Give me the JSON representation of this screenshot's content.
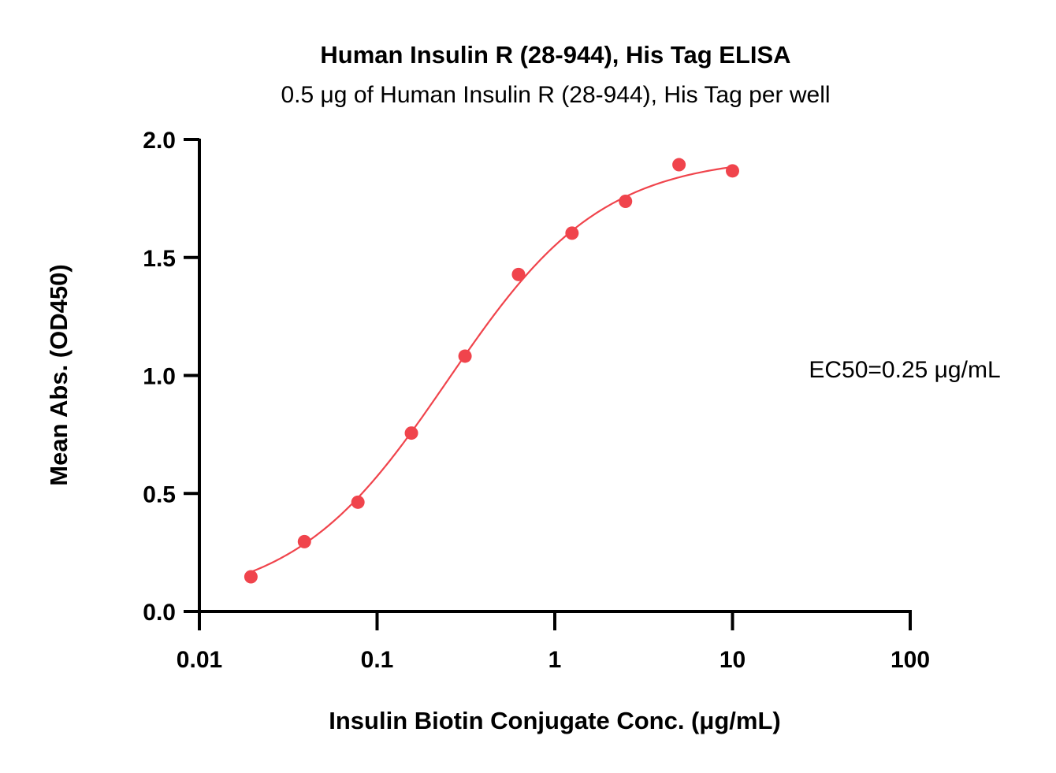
{
  "chart_data": {
    "type": "scatter",
    "title": "Human Insulin R (28-944), His Tag ELISA",
    "subtitle": "0.5 μg of Human Insulin R (28-944), His Tag per well",
    "xlabel": "Insulin Biotin Conjugate Conc. (μg/mL)",
    "ylabel": "Mean Abs. (OD450)",
    "x_scale": "log",
    "xlim": [
      0.01,
      100
    ],
    "ylim": [
      0.0,
      2.0
    ],
    "x_ticks": [
      0.01,
      0.1,
      1,
      10,
      100
    ],
    "x_tick_labels": [
      "0.01",
      "0.1",
      "1",
      "10",
      "100"
    ],
    "y_ticks": [
      0.0,
      0.5,
      1.0,
      1.5,
      2.0
    ],
    "y_tick_labels": [
      "0.0",
      "0.5",
      "1.0",
      "1.5",
      "2.0"
    ],
    "grid": false,
    "color": "#f0444c",
    "annotation": "EC50=0.25 μg/mL",
    "series": [
      {
        "x": [
          0.0195,
          0.039,
          0.078,
          0.156,
          0.3125,
          0.625,
          1.25,
          2.5,
          5,
          10
        ],
        "y": [
          0.147,
          0.296,
          0.463,
          0.756,
          1.082,
          1.428,
          1.603,
          1.738,
          1.893,
          1.867
        ]
      }
    ],
    "fit_curve": {
      "model": "4PL",
      "bottom": 0.03,
      "top": 1.93,
      "ec50": 0.25,
      "hill": 1.0,
      "x_range": [
        0.0195,
        10
      ]
    }
  }
}
